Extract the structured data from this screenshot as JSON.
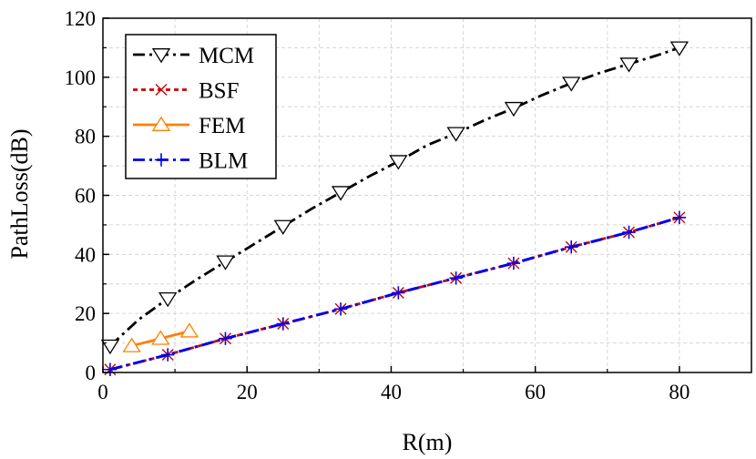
{
  "chart_data": {
    "type": "line",
    "xlabel": "R(m)",
    "ylabel": "PathLoss(dB)",
    "xlim": [
      0,
      90
    ],
    "ylim": [
      0,
      120
    ],
    "xticks": [
      0,
      20,
      40,
      60,
      80
    ],
    "yticks": [
      0,
      20,
      40,
      60,
      80,
      100,
      120
    ],
    "grid": true,
    "legend": "top-left",
    "series": [
      {
        "name": "MCM",
        "color": "#000000",
        "line_style": "dash-dot",
        "marker": "triangle-down",
        "x": [
          1,
          5,
          9,
          13,
          17,
          21,
          25,
          29,
          33,
          37,
          41,
          45,
          49,
          53,
          57,
          61,
          65,
          69,
          73,
          77,
          80
        ],
        "y": [
          9,
          18,
          25,
          31.5,
          37.5,
          43.5,
          49.5,
          55.5,
          61,
          66.5,
          71.5,
          77,
          81,
          85.5,
          89.5,
          94,
          98,
          101.5,
          104.5,
          107.5,
          110
        ],
        "marker_x": [
          1,
          9,
          17,
          25,
          33,
          41,
          49,
          57,
          65,
          73,
          80
        ],
        "marker_y": [
          9,
          25,
          37.5,
          49.5,
          61,
          71.5,
          81,
          89.5,
          98,
          104.5,
          110
        ]
      },
      {
        "name": "BSF",
        "color": "#cc0000",
        "line_style": "dotted",
        "marker": "x",
        "x": [
          1,
          9,
          17,
          25,
          33,
          41,
          49,
          57,
          65,
          73,
          80
        ],
        "y": [
          1,
          6,
          11.5,
          16.5,
          21.5,
          27,
          32,
          37,
          42.5,
          47.5,
          52.5
        ]
      },
      {
        "name": "FEM",
        "color": "#ff8000",
        "line_style": "solid",
        "marker": "triangle-up",
        "x": [
          4,
          8,
          12
        ],
        "y": [
          9,
          11.5,
          14
        ]
      },
      {
        "name": "BLM",
        "color": "#0000ee",
        "line_style": "dash-dot",
        "marker": "plus",
        "x": [
          1,
          9,
          17,
          25,
          33,
          41,
          49,
          57,
          65,
          73,
          80
        ],
        "y": [
          1,
          6,
          11.5,
          16.5,
          21.5,
          27,
          32,
          37,
          42.5,
          47.5,
          52.5
        ]
      }
    ]
  }
}
